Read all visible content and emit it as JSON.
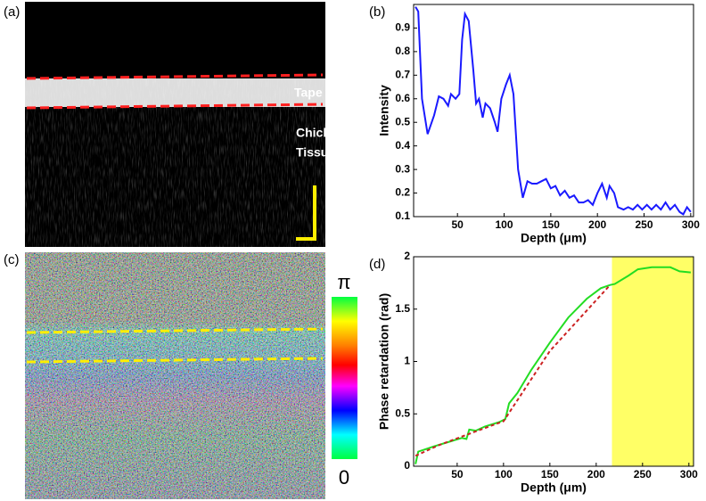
{
  "image_a": {
    "label": "(a)",
    "annotations": [
      "Tape",
      "Chicken",
      "Tissue"
    ]
  },
  "image_c": {
    "label": "(c)",
    "colorbar_labels": [
      "π",
      "0"
    ]
  },
  "chart_data": [
    {
      "type": "line",
      "label": "(b)",
      "x_label": "Depth (μm)",
      "y_label": "Intensity",
      "xlim": [
        3,
        303
      ],
      "ylim": [
        0.1,
        1.0
      ],
      "xticks": [
        50,
        100,
        150,
        200,
        250,
        300
      ],
      "yticks": [
        0.1,
        0.2,
        0.3,
        0.4,
        0.5,
        0.6,
        0.7,
        0.8,
        0.9
      ],
      "series": [
        {
          "color": "#1a1aff",
          "dashed": false,
          "x": [
            5,
            8,
            12,
            18,
            25,
            30,
            35,
            40,
            43,
            48,
            52,
            55,
            58,
            62,
            67,
            70,
            73,
            77,
            80,
            85,
            90,
            93,
            97,
            102,
            106,
            110,
            115,
            120,
            125,
            130,
            135,
            140,
            145,
            150,
            155,
            160,
            165,
            170,
            175,
            180,
            185,
            190,
            195,
            200,
            205,
            210,
            213,
            218,
            222,
            228,
            233,
            238,
            243,
            248,
            253,
            258,
            263,
            268,
            273,
            278,
            283,
            288,
            292,
            296,
            300
          ],
          "values": [
            0.99,
            0.97,
            0.6,
            0.45,
            0.53,
            0.61,
            0.6,
            0.57,
            0.62,
            0.6,
            0.62,
            0.85,
            0.96,
            0.93,
            0.72,
            0.58,
            0.6,
            0.52,
            0.58,
            0.56,
            0.5,
            0.46,
            0.6,
            0.66,
            0.7,
            0.62,
            0.3,
            0.18,
            0.25,
            0.24,
            0.24,
            0.25,
            0.26,
            0.22,
            0.23,
            0.19,
            0.21,
            0.18,
            0.19,
            0.16,
            0.16,
            0.17,
            0.15,
            0.2,
            0.24,
            0.18,
            0.23,
            0.2,
            0.14,
            0.13,
            0.14,
            0.13,
            0.15,
            0.13,
            0.15,
            0.13,
            0.15,
            0.13,
            0.16,
            0.13,
            0.15,
            0.12,
            0.11,
            0.14,
            0.12
          ]
        }
      ]
    },
    {
      "type": "line",
      "label": "(d)",
      "x_label": "Depth (μm)",
      "y_label": "Phase retardation (rad)",
      "xlim": [
        3,
        305
      ],
      "ylim": [
        0,
        2
      ],
      "xticks": [
        50,
        100,
        150,
        200,
        250,
        300
      ],
      "yticks": [
        0,
        0.5,
        1,
        1.5,
        2
      ],
      "highlight": [
        217,
        305
      ],
      "highlight_color": "#ffff66",
      "series": [
        {
          "color": "#22dd22",
          "dashed": false,
          "x": [
            5,
            8,
            15,
            25,
            40,
            55,
            60,
            63,
            70,
            80,
            95,
            102,
            106,
            115,
            130,
            150,
            170,
            190,
            205,
            215,
            220,
            235,
            245,
            260,
            280,
            290,
            302
          ],
          "values": [
            0.02,
            0.14,
            0.16,
            0.19,
            0.23,
            0.27,
            0.26,
            0.35,
            0.34,
            0.38,
            0.42,
            0.45,
            0.6,
            0.7,
            0.92,
            1.18,
            1.42,
            1.6,
            1.7,
            1.73,
            1.74,
            1.82,
            1.88,
            1.9,
            1.9,
            1.86,
            1.85
          ]
        },
        {
          "color": "#cc2222",
          "dashed": true,
          "x": [
            5,
            30,
            60,
            100,
            150,
            215
          ],
          "values": [
            0.1,
            0.2,
            0.3,
            0.43,
            1.1,
            1.73
          ]
        }
      ]
    }
  ]
}
